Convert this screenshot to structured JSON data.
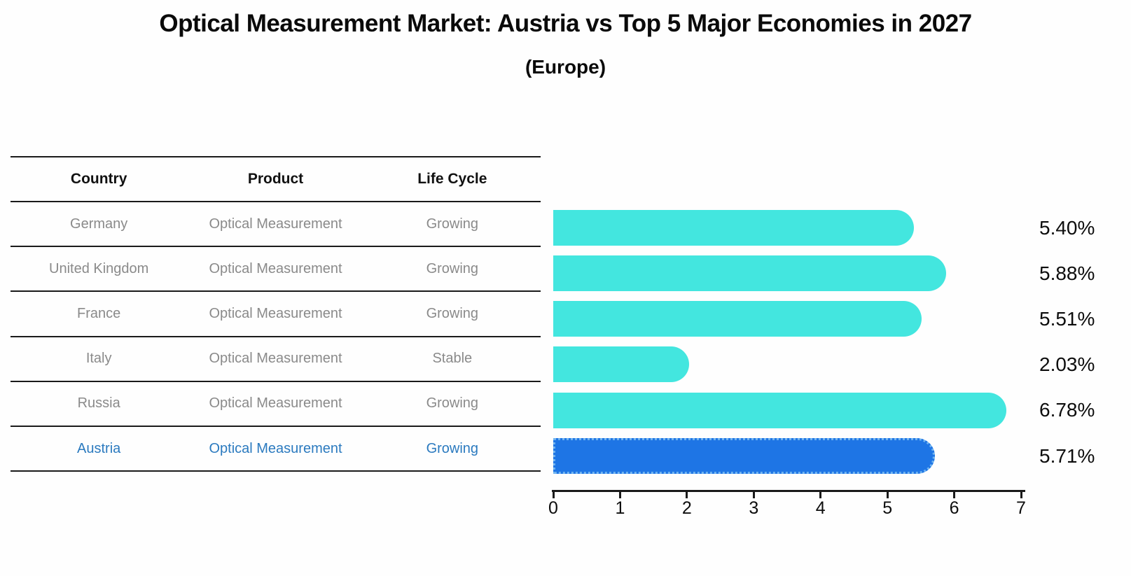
{
  "title": "Optical Measurement Market: Austria vs Top 5 Major Economies in 2027",
  "subtitle": "(Europe)",
  "table": {
    "headers": [
      "Country",
      "Product",
      "Life Cycle"
    ],
    "rows": [
      {
        "country": "Germany",
        "product": "Optical Measurement",
        "life_cycle": "Growing"
      },
      {
        "country": "United Kingdom",
        "product": "Optical Measurement",
        "life_cycle": "Growing"
      },
      {
        "country": "France",
        "product": "Optical Measurement",
        "life_cycle": "Growing"
      },
      {
        "country": "Italy",
        "product": "Optical Measurement",
        "life_cycle": "Stable"
      },
      {
        "country": "Russia",
        "product": "Optical Measurement",
        "life_cycle": "Growing"
      },
      {
        "country": "Austria",
        "product": "Optical Measurement",
        "life_cycle": "Growing"
      }
    ],
    "highlighted_row": "Austria"
  },
  "chart_data": {
    "type": "bar",
    "orientation": "horizontal",
    "title": "Optical Measurement Market: Austria vs Top 5 Major Economies in 2027 (Europe)",
    "categories": [
      "Germany",
      "United Kingdom",
      "France",
      "Italy",
      "Russia",
      "Austria"
    ],
    "values": [
      5.4,
      5.88,
      5.51,
      2.03,
      6.78,
      5.71
    ],
    "value_labels": [
      "5.40%",
      "5.88%",
      "5.51%",
      "2.03%",
      "6.78%",
      "5.71%"
    ],
    "xlabel": "",
    "ylabel": "",
    "xlim": [
      0,
      7
    ],
    "x_ticks": [
      "0",
      "1",
      "2",
      "3",
      "4",
      "5",
      "6",
      "7"
    ],
    "grid": false,
    "legend": false,
    "highlight_index": 5
  },
  "colors": {
    "bar": "#43E6DF",
    "highlight_bar": "#1E75E5",
    "highlight_border": "#6FB3F0",
    "highlight_text": "#2B7ABF",
    "table_text": "#8A8A8A",
    "axis": "#1A1A1A",
    "background": "#FEFEFE"
  }
}
